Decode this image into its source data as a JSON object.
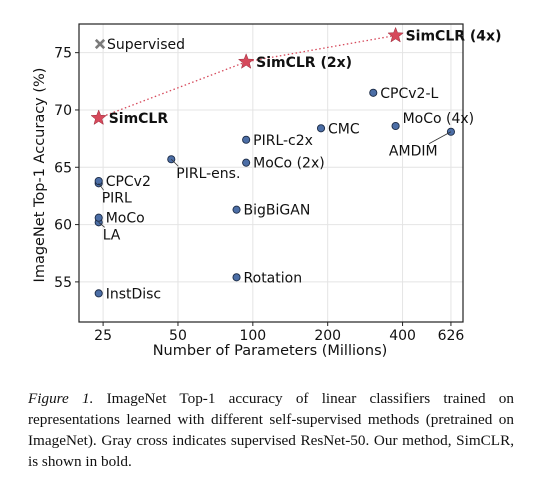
{
  "chart_data": {
    "type": "scatter",
    "xlabel": "Number of Parameters (Millions)",
    "ylabel": "ImageNet Top-1 Accuracy (%)",
    "x_scale": "log",
    "xlim": [
      20,
      700
    ],
    "ylim": [
      51.5,
      77.5
    ],
    "x_ticks": [
      25,
      50,
      100,
      200,
      400,
      626
    ],
    "y_ticks": [
      55,
      60,
      65,
      70,
      75
    ],
    "grid": true,
    "points": [
      {
        "label": "InstDisc",
        "x": 24,
        "y": 54.0
      },
      {
        "label": "Rotation",
        "x": 86,
        "y": 55.4
      },
      {
        "label": "LA",
        "x": 24,
        "y": 60.2
      },
      {
        "label": "MoCo",
        "x": 24,
        "y": 60.6
      },
      {
        "label": "PIRL",
        "x": 24,
        "y": 63.6
      },
      {
        "label": "CPCv2",
        "x": 24,
        "y": 63.8
      },
      {
        "label": "BigBiGAN",
        "x": 86,
        "y": 61.3
      },
      {
        "label": "PIRL-ens.",
        "x": 47,
        "y": 65.7
      },
      {
        "label": "MoCo (2x)",
        "x": 94,
        "y": 65.4
      },
      {
        "label": "PIRL-c2x",
        "x": 94,
        "y": 67.4
      },
      {
        "label": "CMC",
        "x": 188,
        "y": 68.4
      },
      {
        "label": "CPCv2-L",
        "x": 305,
        "y": 71.5
      },
      {
        "label": "MoCo (4x)",
        "x": 375,
        "y": 68.6
      },
      {
        "label": "AMDIM",
        "x": 626,
        "y": 68.1
      }
    ],
    "simclr_points": [
      {
        "label": "SimCLR",
        "x": 24,
        "y": 69.3
      },
      {
        "label": "SimCLR (2x)",
        "x": 94,
        "y": 74.2
      },
      {
        "label": "SimCLR (4x)",
        "x": 375,
        "y": 76.5
      }
    ],
    "supervised_marker": {
      "label": "Supervised"
    },
    "colors": {
      "point": "#4c6ea6",
      "point_edge": "#1b2a44",
      "simclr": "#d6495b",
      "cross": "#7b7b7b",
      "grid": "#e4e4e4"
    }
  },
  "caption": {
    "figure_label": "Figure 1.",
    "text": "ImageNet Top-1 accuracy of linear classifiers trained on representations learned with different self-supervised methods (pretrained on ImageNet). Gray cross indicates supervised ResNet-50. Our method, SimCLR, is shown in bold."
  }
}
